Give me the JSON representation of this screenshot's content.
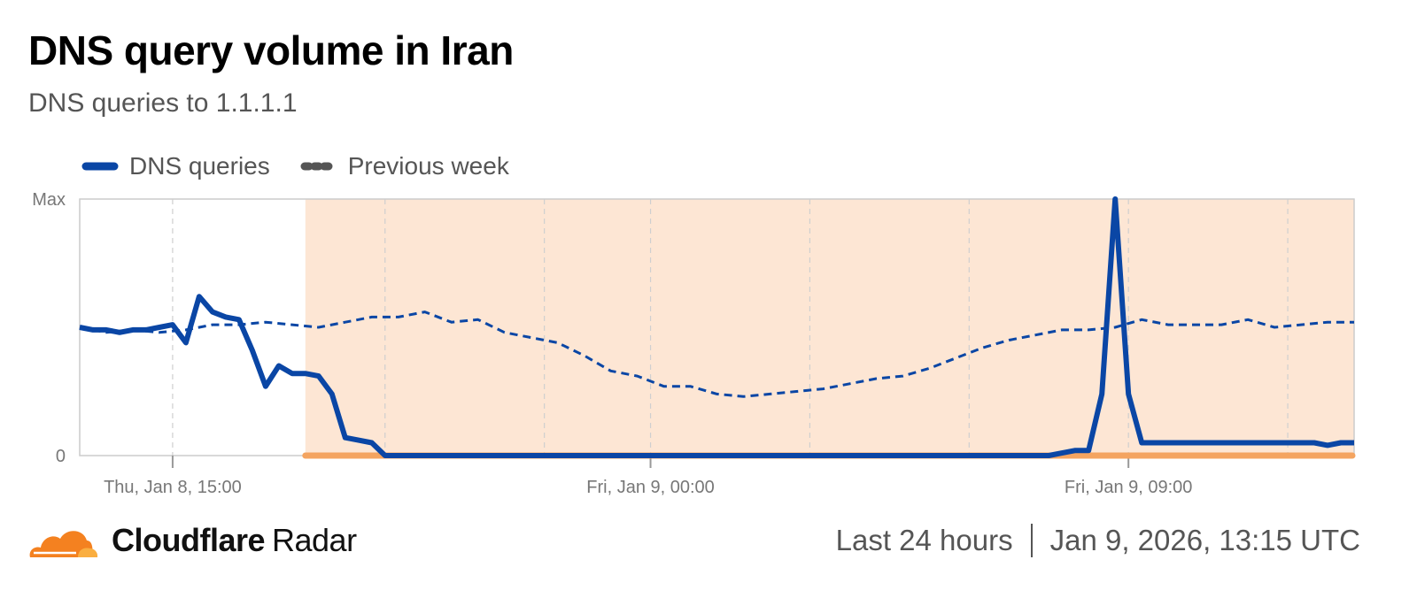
{
  "header": {
    "title": "DNS query volume in Iran",
    "subtitle": "DNS queries to 1.1.1.1"
  },
  "legend": {
    "series1": "DNS queries",
    "series2": "Previous week"
  },
  "colors": {
    "primary": "#0A46A5",
    "shade": "#FDE6D4",
    "shade_line": "#F4A460",
    "grid": "#dddddd",
    "brand_orange": "#F48120",
    "brand_light": "#FAAE40"
  },
  "footer": {
    "brand": "Cloudflare",
    "product": "Radar",
    "period": "Last 24 hours",
    "timestamp": "Jan 9, 2026, 13:15 UTC"
  },
  "chart_data": {
    "type": "line",
    "x_unit": "hours from Thu Jan 8 13:15 UTC",
    "xlim": [
      0,
      24
    ],
    "ylim": [
      0,
      1
    ],
    "y_ticks": [
      {
        "value": 1,
        "label": "Max"
      },
      {
        "value": 0,
        "label": "0"
      }
    ],
    "x_ticks": [
      {
        "x": 1.75,
        "label": "Thu, Jan 8, 15:00"
      },
      {
        "x": 10.75,
        "label": "Fri, Jan 9, 00:00"
      },
      {
        "x": 19.75,
        "label": "Fri, Jan 9, 09:00"
      }
    ],
    "grid_x": [
      1.75,
      5.75,
      8.75,
      10.75,
      13.75,
      16.75,
      19.75,
      22.75
    ],
    "shaded_region": [
      4.25,
      24
    ],
    "series": [
      {
        "name": "DNS queries",
        "style": "solid",
        "points": [
          [
            0.0,
            0.5
          ],
          [
            0.25,
            0.49
          ],
          [
            0.5,
            0.49
          ],
          [
            0.75,
            0.48
          ],
          [
            1.0,
            0.49
          ],
          [
            1.25,
            0.49
          ],
          [
            1.5,
            0.5
          ],
          [
            1.75,
            0.51
          ],
          [
            2.0,
            0.44
          ],
          [
            2.25,
            0.62
          ],
          [
            2.5,
            0.56
          ],
          [
            2.75,
            0.54
          ],
          [
            3.0,
            0.53
          ],
          [
            3.25,
            0.41
          ],
          [
            3.5,
            0.27
          ],
          [
            3.75,
            0.35
          ],
          [
            4.0,
            0.32
          ],
          [
            4.25,
            0.32
          ],
          [
            4.5,
            0.31
          ],
          [
            4.75,
            0.24
          ],
          [
            5.0,
            0.07
          ],
          [
            5.25,
            0.06
          ],
          [
            5.5,
            0.05
          ],
          [
            5.75,
            0.0
          ],
          [
            6.5,
            0.0
          ],
          [
            8.0,
            0.0
          ],
          [
            9.5,
            0.0
          ],
          [
            11.0,
            0.0
          ],
          [
            12.5,
            0.0
          ],
          [
            14.0,
            0.0
          ],
          [
            15.5,
            0.0
          ],
          [
            17.0,
            0.0
          ],
          [
            18.0,
            0.0
          ],
          [
            18.25,
            0.0
          ],
          [
            18.5,
            0.01
          ],
          [
            18.75,
            0.02
          ],
          [
            19.0,
            0.02
          ],
          [
            19.25,
            0.24
          ],
          [
            19.5,
            1.0
          ],
          [
            19.75,
            0.24
          ],
          [
            20.0,
            0.05
          ],
          [
            20.25,
            0.05
          ],
          [
            20.5,
            0.05
          ],
          [
            20.75,
            0.05
          ],
          [
            21.0,
            0.05
          ],
          [
            21.25,
            0.05
          ],
          [
            21.5,
            0.05
          ],
          [
            21.75,
            0.05
          ],
          [
            22.0,
            0.05
          ],
          [
            22.25,
            0.05
          ],
          [
            22.5,
            0.05
          ],
          [
            22.75,
            0.05
          ],
          [
            23.0,
            0.05
          ],
          [
            23.25,
            0.05
          ],
          [
            23.5,
            0.04
          ],
          [
            23.75,
            0.05
          ],
          [
            24.0,
            0.05
          ]
        ]
      },
      {
        "name": "Previous week",
        "style": "dashed",
        "points": [
          [
            0.0,
            0.5
          ],
          [
            0.5,
            0.48
          ],
          [
            1.0,
            0.49
          ],
          [
            1.5,
            0.48
          ],
          [
            2.0,
            0.49
          ],
          [
            2.5,
            0.51
          ],
          [
            3.0,
            0.51
          ],
          [
            3.5,
            0.52
          ],
          [
            4.0,
            0.51
          ],
          [
            4.5,
            0.5
          ],
          [
            5.0,
            0.52
          ],
          [
            5.5,
            0.54
          ],
          [
            6.0,
            0.54
          ],
          [
            6.5,
            0.56
          ],
          [
            7.0,
            0.52
          ],
          [
            7.5,
            0.53
          ],
          [
            8.0,
            0.48
          ],
          [
            8.5,
            0.46
          ],
          [
            9.0,
            0.44
          ],
          [
            9.5,
            0.39
          ],
          [
            10.0,
            0.33
          ],
          [
            10.5,
            0.31
          ],
          [
            11.0,
            0.27
          ],
          [
            11.5,
            0.27
          ],
          [
            12.0,
            0.24
          ],
          [
            12.5,
            0.23
          ],
          [
            13.0,
            0.24
          ],
          [
            13.5,
            0.25
          ],
          [
            14.0,
            0.26
          ],
          [
            14.5,
            0.28
          ],
          [
            15.0,
            0.3
          ],
          [
            15.5,
            0.31
          ],
          [
            16.0,
            0.34
          ],
          [
            16.5,
            0.38
          ],
          [
            17.0,
            0.42
          ],
          [
            17.5,
            0.45
          ],
          [
            18.0,
            0.47
          ],
          [
            18.5,
            0.49
          ],
          [
            19.0,
            0.49
          ],
          [
            19.5,
            0.5
          ],
          [
            20.0,
            0.53
          ],
          [
            20.5,
            0.51
          ],
          [
            21.0,
            0.51
          ],
          [
            21.5,
            0.51
          ],
          [
            22.0,
            0.53
          ],
          [
            22.5,
            0.5
          ],
          [
            23.0,
            0.51
          ],
          [
            23.5,
            0.52
          ],
          [
            24.0,
            0.52
          ]
        ]
      }
    ]
  }
}
